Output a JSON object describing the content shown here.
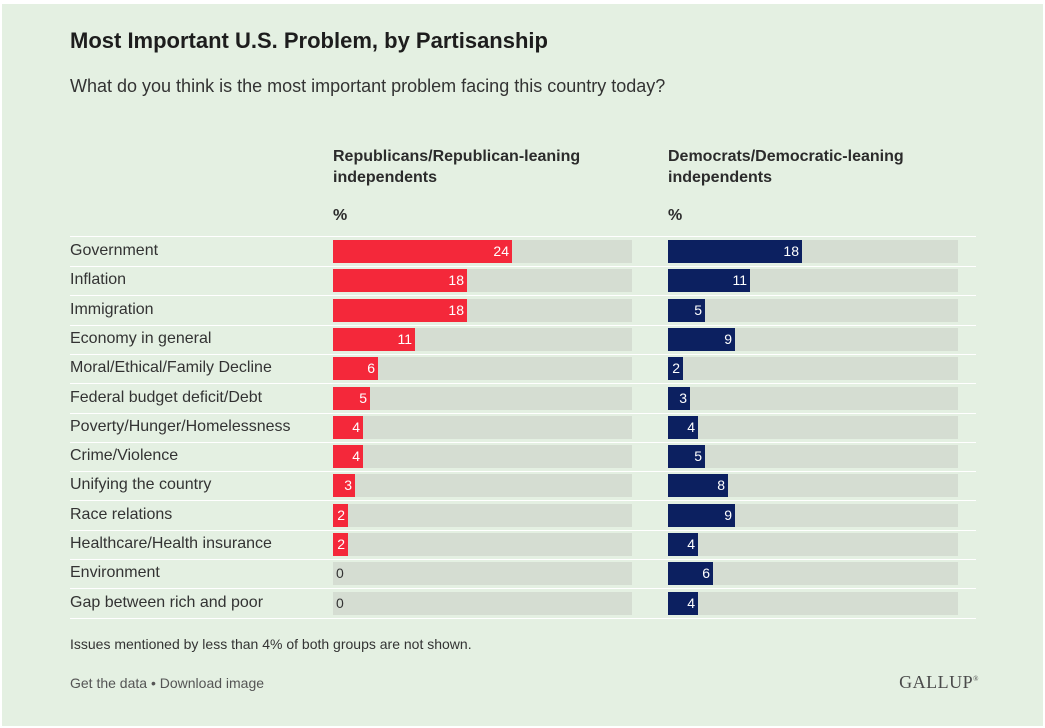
{
  "header": {
    "title": "Most Important U.S. Problem, by Partisanship",
    "subtitle": "What do you think is the most important problem facing this country today?"
  },
  "columns": {
    "republicans": {
      "label": "Republicans/Republican-leaning independents",
      "unit": "%"
    },
    "democrats": {
      "label": "Democrats/Democratic-leaning independents",
      "unit": "%"
    }
  },
  "colors": {
    "republicans": "#f4283a",
    "democrats": "#0c2060",
    "track": "#d5ddd2",
    "background": "#e4f0e2"
  },
  "chart_data": {
    "type": "bar",
    "orientation": "horizontal",
    "categories": [
      "Government",
      "Inflation",
      "Immigration",
      "Economy in general",
      "Moral/Ethical/Family Decline",
      "Federal budget deficit/Debt",
      "Poverty/Hunger/Homelessness",
      "Crime/Violence",
      "Unifying the country",
      "Race relations",
      "Healthcare/Health insurance",
      "Environment",
      "Gap between rich and poor"
    ],
    "series": [
      {
        "name": "Republicans/Republican-leaning independents",
        "values": [
          24,
          18,
          18,
          11,
          6,
          5,
          4,
          4,
          3,
          2,
          2,
          0,
          0
        ]
      },
      {
        "name": "Democrats/Democratic-leaning independents",
        "values": [
          18,
          11,
          5,
          9,
          2,
          3,
          4,
          5,
          8,
          9,
          4,
          6,
          4
        ]
      }
    ],
    "xlim": [
      0,
      50
    ],
    "unit": "%",
    "grid": false,
    "legend": "column-headers"
  },
  "footer": {
    "note": "Issues mentioned by less than 4% of both groups are not shown.",
    "get_data": "Get the data",
    "separator": " • ",
    "download": "Download image",
    "brand": "GALLUP"
  }
}
